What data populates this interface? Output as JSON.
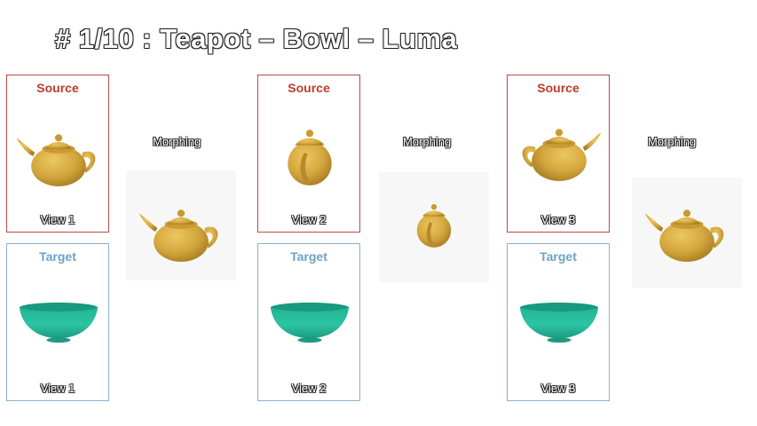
{
  "title": "# 1/10 : Teapot – Bowl – Luma",
  "columns": [
    {
      "source_heading": "Source",
      "target_heading": "Target",
      "source_view": "View 1",
      "target_view": "View 1",
      "morph_label": "Morphing"
    },
    {
      "source_heading": "Source",
      "target_heading": "Target",
      "source_view": "View 2",
      "target_view": "View 2",
      "morph_label": "Morphing"
    },
    {
      "source_heading": "Source",
      "target_heading": "Target",
      "source_view": "View 3",
      "target_view": "View 3",
      "morph_label": "Morphing"
    }
  ],
  "colors": {
    "teapot": "#d3a63c",
    "bowl": "#2cc4a4",
    "source_border": "#b94a48",
    "target_border": "#8db0cc"
  },
  "icons": {
    "source_object": "teapot-icon",
    "target_object": "bowl-icon",
    "morph_object": "teapot-icon"
  }
}
